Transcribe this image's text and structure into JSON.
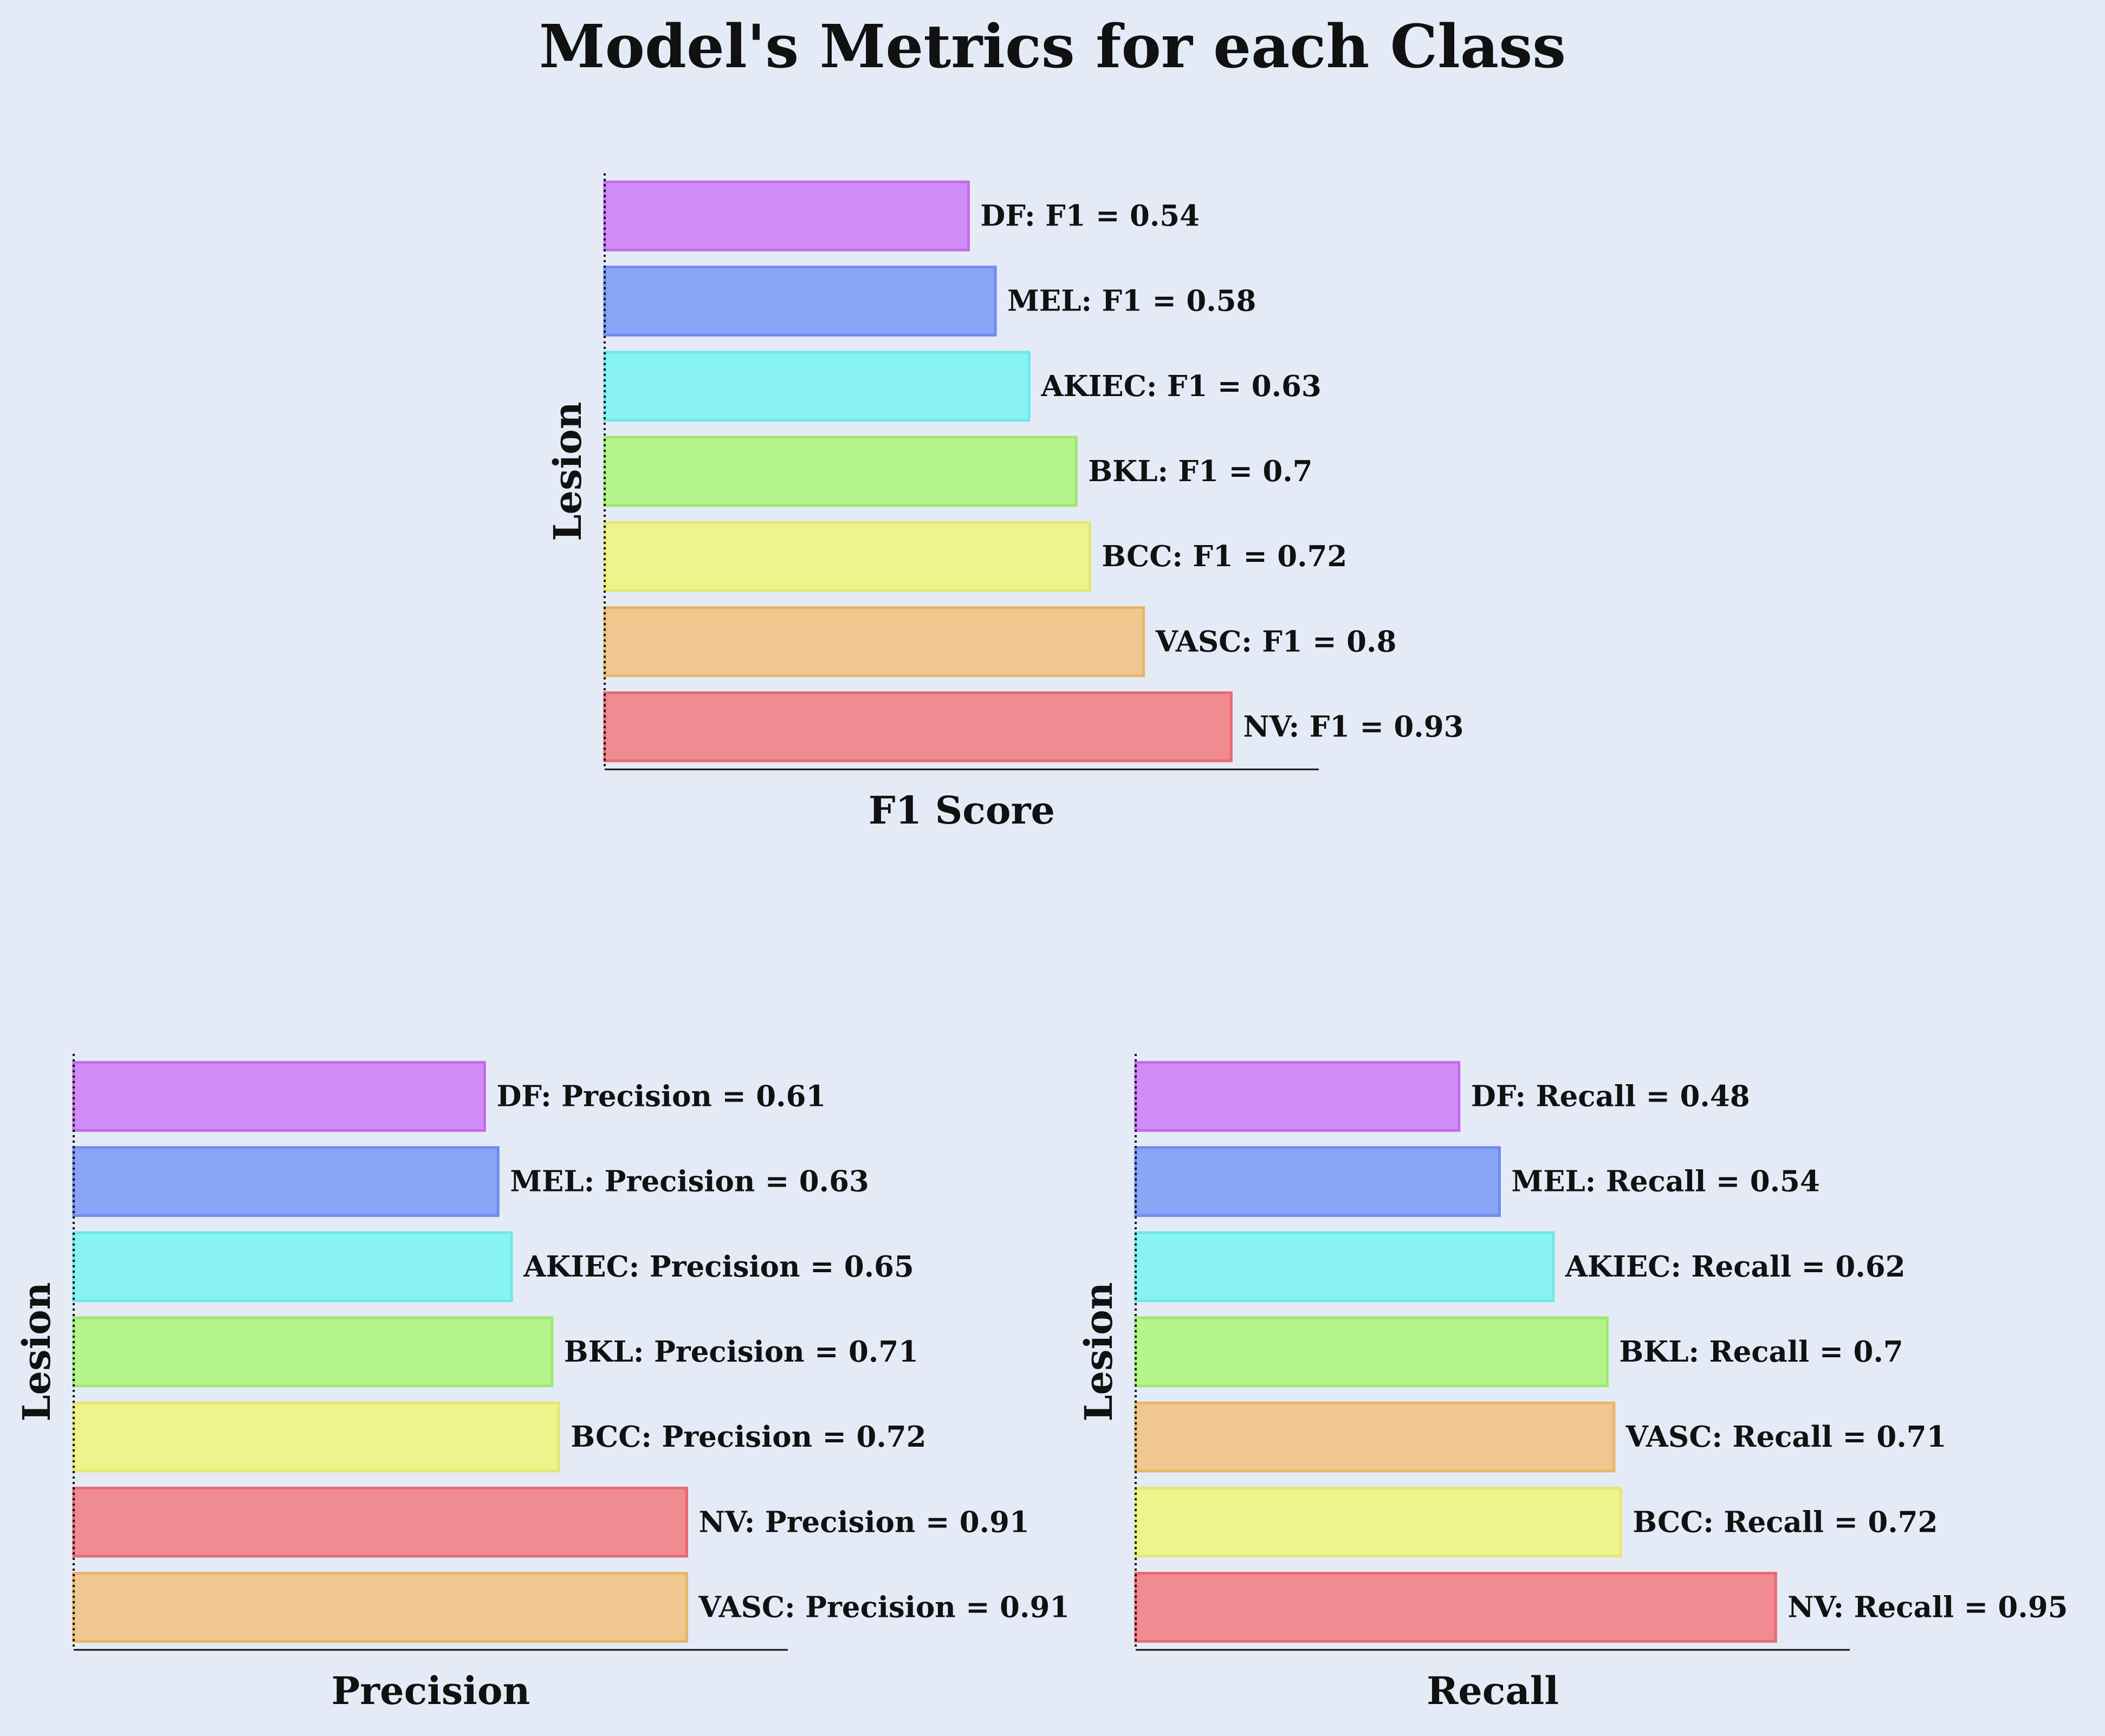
{
  "title": "Model's Metrics for each Class",
  "colors": {
    "background": "#e5ebf6",
    "DF": "#d18cf8",
    "MEL": "#8aa5f5",
    "AKIEC": "#88f3f2",
    "BKL": "#b5f58c",
    "BCC": "#eef38c",
    "VASC": "#efc78f",
    "NV": "#ef8b91",
    "DF_edge": "#c16ee8",
    "MEL_edge": "#6f8cf0",
    "AKIEC_edge": "#6fe8e8",
    "BKL_edge": "#9ee872",
    "BCC_edge": "#e3e872",
    "VASC_edge": "#e8b56a",
    "NV_edge": "#e86a72"
  },
  "chart_data": [
    {
      "type": "bar",
      "orientation": "horizontal",
      "xlabel": "F1 Score",
      "ylabel": "Lesion",
      "xlim": [
        0,
        1.06
      ],
      "metric": "F1",
      "categories": [
        "DF",
        "MEL",
        "AKIEC",
        "BKL",
        "BCC",
        "VASC",
        "NV"
      ],
      "values": [
        0.54,
        0.58,
        0.63,
        0.7,
        0.72,
        0.8,
        0.93
      ],
      "labels": [
        "DF: F1 = 0.54",
        "MEL: F1 = 0.58",
        "AKIEC: F1 = 0.63",
        "BKL: F1 = 0.7",
        "BCC: F1 = 0.72",
        "VASC: F1 = 0.8",
        "NV: F1 = 0.93"
      ]
    },
    {
      "type": "bar",
      "orientation": "horizontal",
      "xlabel": "Precision",
      "ylabel": "Lesion",
      "xlim": [
        0,
        1.06
      ],
      "metric": "Precision",
      "categories": [
        "DF",
        "MEL",
        "AKIEC",
        "BKL",
        "BCC",
        "NV",
        "VASC"
      ],
      "values": [
        0.61,
        0.63,
        0.65,
        0.71,
        0.72,
        0.91,
        0.91
      ],
      "labels": [
        "DF: Precision = 0.61",
        "MEL: Precision = 0.63",
        "AKIEC: Precision = 0.65",
        "BKL: Precision = 0.71",
        "BCC: Precision = 0.72",
        "NV: Precision = 0.91",
        "VASC: Precision = 0.91"
      ]
    },
    {
      "type": "bar",
      "orientation": "horizontal",
      "xlabel": "Recall",
      "ylabel": "Lesion",
      "xlim": [
        0,
        1.06
      ],
      "metric": "Recall",
      "categories": [
        "DF",
        "MEL",
        "AKIEC",
        "BKL",
        "VASC",
        "BCC",
        "NV"
      ],
      "values": [
        0.48,
        0.54,
        0.62,
        0.7,
        0.71,
        0.72,
        0.95
      ],
      "labels": [
        "DF: Recall = 0.48",
        "MEL: Recall = 0.54",
        "AKIEC: Recall = 0.62",
        "BKL: Recall = 0.7",
        "VASC: Recall = 0.71",
        "BCC: Recall = 0.72",
        "NV: Recall = 0.95"
      ]
    }
  ]
}
